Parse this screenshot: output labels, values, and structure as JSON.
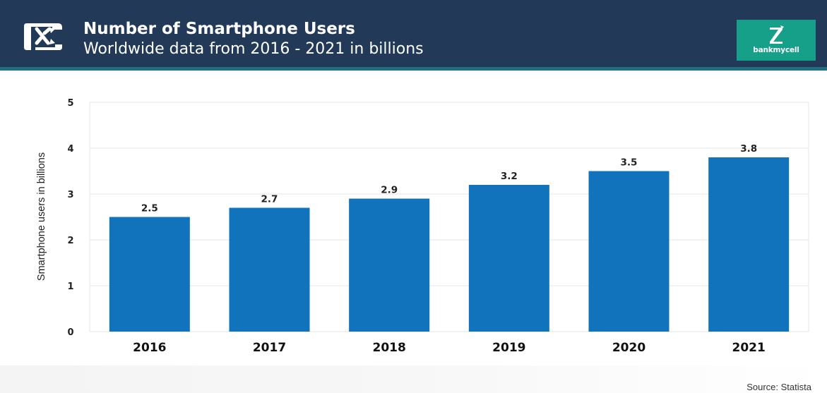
{
  "header": {
    "title": "Number of Smartphone Users",
    "subtitle": "Worldwide data from 2016 - 2021 in billions",
    "icon": "shuffle-arrows-icon"
  },
  "logo": {
    "text": "bankmycell",
    "icon": "bankmycell-logo-icon",
    "color": "#16a089"
  },
  "colors": {
    "header_bg": "#223a57",
    "header_accent": "#1f6f7d",
    "bar": "#1273bd"
  },
  "chart_data": {
    "type": "bar",
    "categories": [
      "2016",
      "2017",
      "2018",
      "2019",
      "2020",
      "2021"
    ],
    "values": [
      2.5,
      2.7,
      2.9,
      3.2,
      3.5,
      3.8
    ],
    "value_labels": [
      "2.5",
      "2.7",
      "2.9",
      "3.2",
      "3.5",
      "3.8"
    ],
    "yticks": [
      "0",
      "1",
      "2",
      "3",
      "4",
      "5"
    ],
    "ylabel": "Smartphone users in billions",
    "xlabel": "",
    "ylim": [
      0,
      5
    ],
    "grid": true,
    "legend": "none"
  },
  "footer": {
    "source": "Source: Statista"
  }
}
